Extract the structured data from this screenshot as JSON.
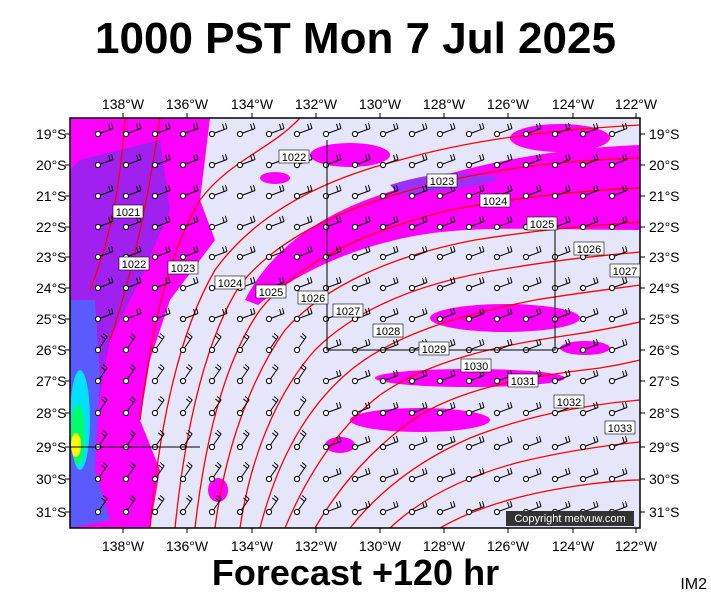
{
  "header": {
    "title": "1000 PST Mon 7 Jul 2025"
  },
  "footer": {
    "forecast": "Forecast +120 hr",
    "corner_label": "IM2"
  },
  "map": {
    "copyright": "Copyright metvuw.com",
    "lon_ticks": [
      "138°W",
      "136°W",
      "134°W",
      "132°W",
      "130°W",
      "128°W",
      "126°W",
      "124°W",
      "122°W"
    ],
    "lat_ticks": [
      "19°S",
      "20°S",
      "21°S",
      "22°S",
      "23°S",
      "24°S",
      "25°S",
      "26°S",
      "27°S",
      "28°S",
      "29°S",
      "30°S",
      "31°S"
    ],
    "isobar_labels": [
      "1021",
      "1022",
      "1022",
      "1023",
      "1023",
      "1024",
      "1024",
      "1025",
      "1025",
      "1026",
      "1026",
      "1027",
      "1027",
      "1028",
      "1029",
      "1030",
      "1031",
      "1032",
      "1033"
    ],
    "colors": {
      "background": "#e6e6fa",
      "isobar": "#ff0000",
      "rain_light": "#ff00ff",
      "rain_medium": "#8a2be2",
      "rain_heavy": "#0000ff"
    }
  }
}
